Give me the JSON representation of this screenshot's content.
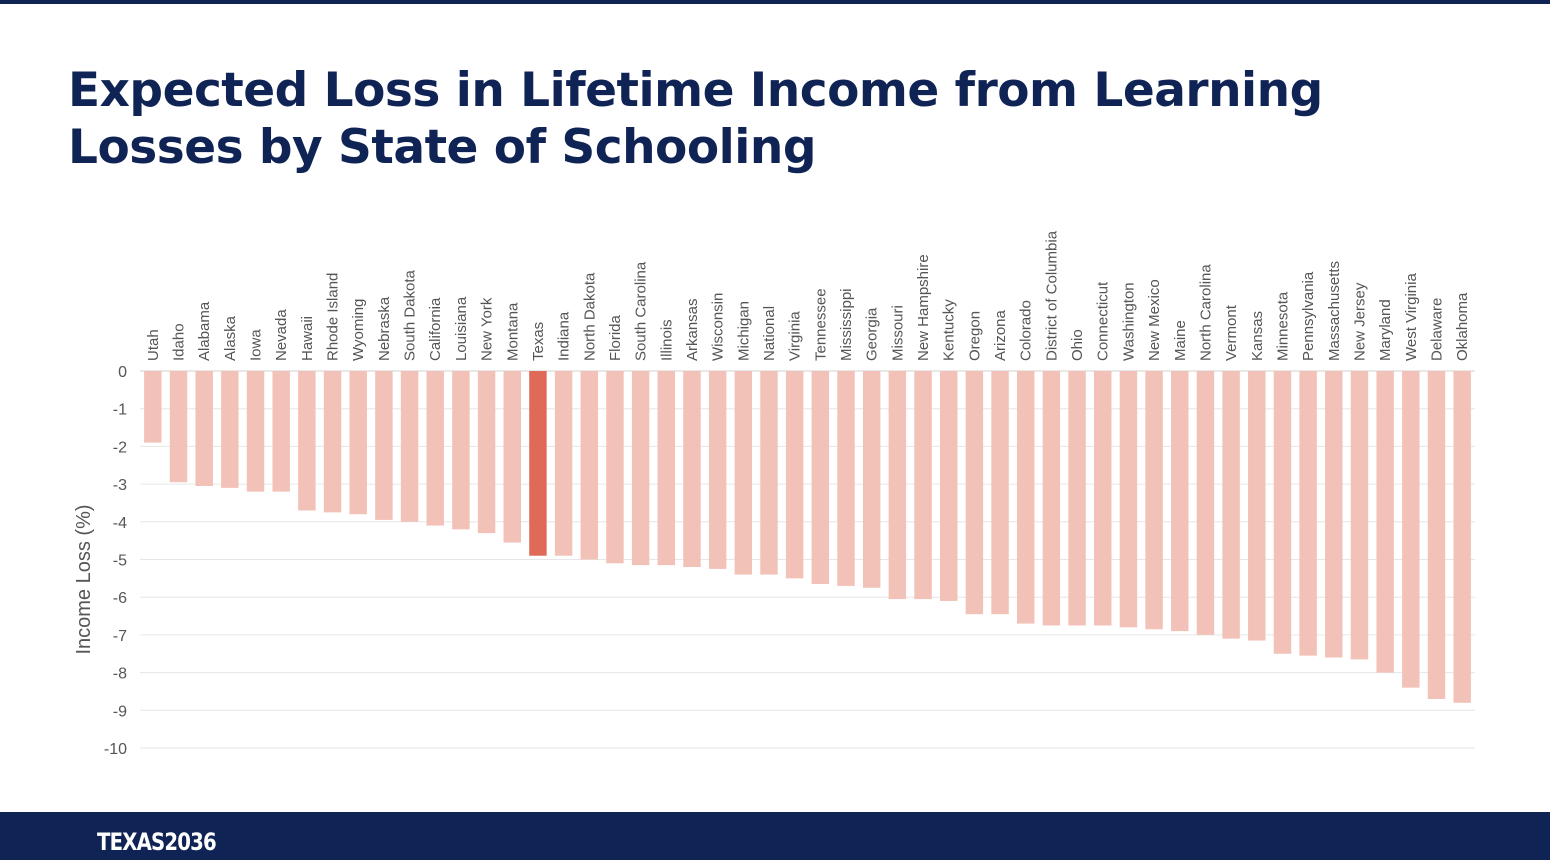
{
  "page": {
    "title": "Expected Loss in Lifetime Income from Learning Losses by State of Schooling"
  },
  "colors": {
    "bar": "#f2c2b9",
    "highlight": "#e06a58",
    "navy": "#0f2355",
    "grid": "#e6e6e6",
    "text": "#555555"
  },
  "footer": {
    "logo_text": "TEXAS2036"
  },
  "chart_data": {
    "type": "bar",
    "title": "Expected Loss in Lifetime Income from Learning Losses by State of Schooling",
    "ylabel": "Income Loss (%)",
    "xlabel": "",
    "ylim": [
      -10,
      0
    ],
    "yticks": [
      0,
      -1,
      -2,
      -3,
      -4,
      -5,
      -6,
      -7,
      -8,
      -9,
      -10
    ],
    "grid": true,
    "category_label_orientation": "vertical",
    "highlight": "Texas",
    "categories": [
      "Utah",
      "Idaho",
      "Alabama",
      "Alaska",
      "Iowa",
      "Nevada",
      "Hawaii",
      "Rhode Island",
      "Wyoming",
      "Nebraska",
      "South Dakota",
      "California",
      "Louisiana",
      "New York",
      "Montana",
      "Texas",
      "Indiana",
      "North Dakota",
      "Florida",
      "South Carolina",
      "Illinois",
      "Arkansas",
      "Wisconsin",
      "Michigan",
      "National",
      "Virginia",
      "Tennessee",
      "Mississippi",
      "Georgia",
      "Missouri",
      "New Hampshire",
      "Kentucky",
      "Oregon",
      "Arizona",
      "Colorado",
      "District of Columbia",
      "Ohio",
      "Connecticut",
      "Washington",
      "New Mexico",
      "Maine",
      "North Carolina",
      "Vermont",
      "Kansas",
      "Minnesota",
      "Pennsylvania",
      "Massachusetts",
      "New Jersey",
      "Maryland",
      "West Virginia",
      "Delaware",
      "Oklahoma"
    ],
    "values": [
      -1.9,
      -2.95,
      -3.05,
      -3.1,
      -3.2,
      -3.2,
      -3.7,
      -3.75,
      -3.8,
      -3.95,
      -4.0,
      -4.1,
      -4.2,
      -4.3,
      -4.55,
      -4.9,
      -4.9,
      -5.0,
      -5.1,
      -5.15,
      -5.15,
      -5.2,
      -5.25,
      -5.4,
      -5.4,
      -5.5,
      -5.65,
      -5.7,
      -5.75,
      -6.05,
      -6.05,
      -6.1,
      -6.45,
      -6.45,
      -6.7,
      -6.75,
      -6.75,
      -6.75,
      -6.8,
      -6.85,
      -6.9,
      -7.0,
      -7.1,
      -7.15,
      -7.5,
      -7.55,
      -7.6,
      -7.65,
      -8.0,
      -8.4,
      -8.7,
      -8.8
    ]
  }
}
